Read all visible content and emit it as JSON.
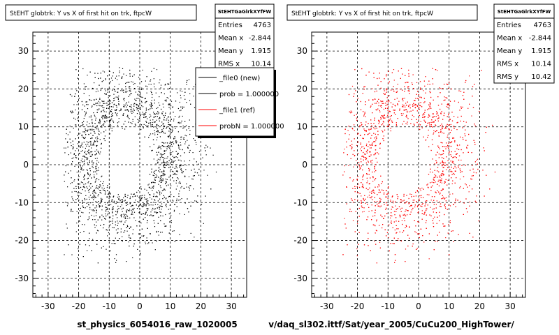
{
  "chart_data": [
    {
      "type": "scatter",
      "title": "StEHT globtrk: Y vs X of first hit on trk, ftpcW",
      "xlabel": "st_physics_6054016_raw_1020005",
      "ylabel": "",
      "xlim": [
        -35,
        35
      ],
      "ylim": [
        -35,
        35
      ],
      "xticks": [
        "-30",
        "-20",
        "-10",
        "0",
        "10",
        "20",
        "30"
      ],
      "yticks": [
        "-30",
        "-20",
        "-10",
        "0",
        "10",
        "20",
        "30"
      ],
      "grid": true,
      "point_color": "#000000",
      "stats": {
        "header": "StEHTGaGlrkXYfFW",
        "rows": [
          {
            "label": "Entries",
            "value": "4763"
          },
          {
            "label": "Mean x",
            "value": "-2.844"
          },
          {
            "label": "Mean y",
            "value": "1.915"
          },
          {
            "label": "RMS x",
            "value": "10.14"
          }
        ]
      },
      "legend": {
        "placement": "top-right",
        "entries": [
          {
            "label": "_file0 (new)",
            "color": "#000000"
          },
          {
            "label": "prob = 1.000000",
            "color": "#000000"
          },
          {
            "label": "_file1 (ref)",
            "color": "#ff0000"
          },
          {
            "label": "probN = 1.000000",
            "color": "#ff0000"
          }
        ]
      }
    },
    {
      "type": "scatter",
      "title": "StEHT globtrk: Y vs X of first hit on trk, ftpcW",
      "xlabel": "v/daq_sl302.ittf/Sat/year_2005/CuCu200_HighTower/",
      "ylabel": "",
      "xlim": [
        -35,
        35
      ],
      "ylim": [
        -35,
        35
      ],
      "xticks": [
        "-30",
        "-20",
        "-10",
        "0",
        "10",
        "20",
        "30"
      ],
      "yticks": [
        "-30",
        "-20",
        "-10",
        "0",
        "10",
        "20",
        "30"
      ],
      "grid": true,
      "point_color": "#ff0000",
      "stats": {
        "header": "StEHTGaGlrkXYfFW",
        "rows": [
          {
            "label": "Entries",
            "value": "4763"
          },
          {
            "label": "Mean x",
            "value": "-2.844"
          },
          {
            "label": "Mean y",
            "value": "1.915"
          },
          {
            "label": "RMS x",
            "value": "10.14"
          },
          {
            "label": "RMS y",
            "value": "10.42"
          }
        ]
      }
    }
  ]
}
